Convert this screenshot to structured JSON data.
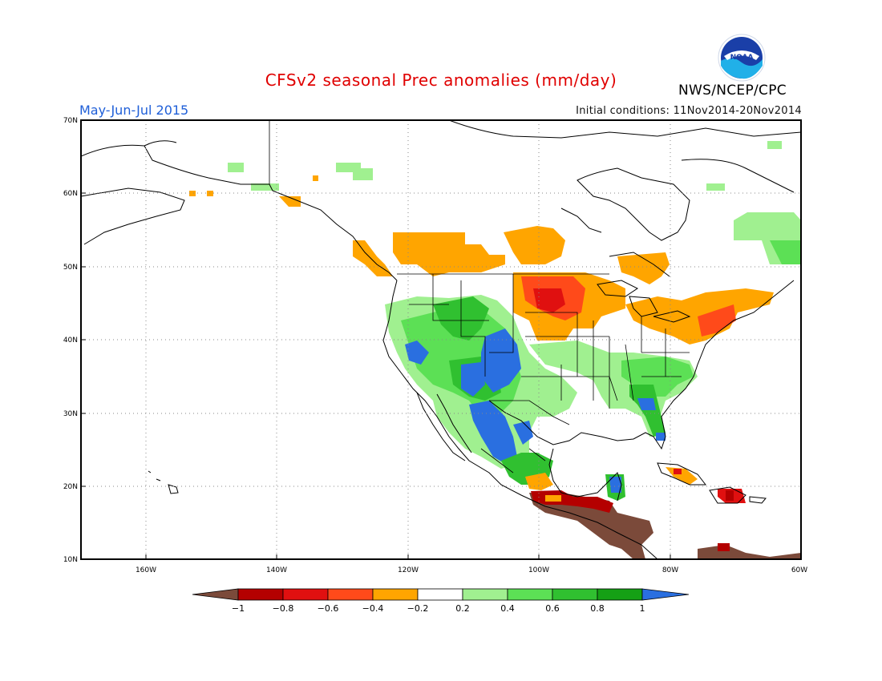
{
  "title": "CFSv2 seasonal Prec anomalies (mm/day)",
  "season": "May-Jun-Jul 2015",
  "initial_conditions": "Initial conditions: 11Nov2014-20Nov2014",
  "agency": "NWS/NCEP/CPC",
  "logo_text": "NOAA",
  "lat_labels": [
    "70N",
    "60N",
    "50N",
    "40N",
    "30N",
    "20N",
    "10N"
  ],
  "lon_labels": [
    "160W",
    "140W",
    "120W",
    "100W",
    "80W",
    "60W"
  ],
  "colorbar": {
    "levels": [
      "-1",
      "-0.8",
      "-0.6",
      "-0.4",
      "-0.2",
      "0.2",
      "0.4",
      "0.6",
      "0.8",
      "1"
    ],
    "colors": [
      "#7b4a3a",
      "#b40000",
      "#e01010",
      "#ff4a1a",
      "#ffa500",
      "#ffffff",
      "#a0f090",
      "#5ce055",
      "#30c030",
      "#15a015",
      "#2a6fe0"
    ]
  },
  "anomaly_regions": [
    {
      "area": "Southern Canada prairies / Pacific NW coast",
      "category": "-0.4 to -0.2"
    },
    {
      "area": "North Dakota / Minnesota border",
      "category": "-0.8 to -0.6"
    },
    {
      "area": "Great Lakes to New England",
      "category": "-0.4 to -0.2"
    },
    {
      "area": "Southern Mexico / Central America",
      "category": "< -1"
    },
    {
      "area": "Southwest US / Northern Mexico",
      "category": "> 1"
    },
    {
      "area": "Southeast US / Florida",
      "category": "0.6 to 1"
    },
    {
      "area": "Alaska interior / Northeastern Canada",
      "category": "0.2 to 0.4"
    }
  ]
}
